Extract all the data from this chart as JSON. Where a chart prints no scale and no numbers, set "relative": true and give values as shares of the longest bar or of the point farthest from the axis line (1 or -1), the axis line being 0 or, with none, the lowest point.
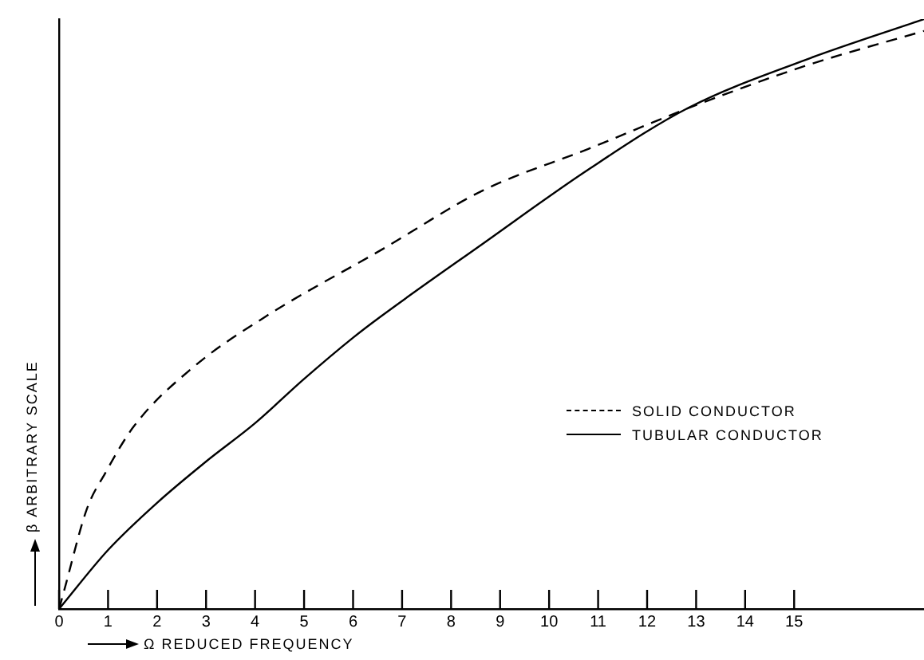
{
  "chart_data": {
    "type": "line",
    "relative": true,
    "xlabel": "Ω REDUCED FREQUENCY",
    "ylabel": "β ARBITRARY SCALE",
    "xlim": [
      0,
      17.65
    ],
    "xticks": [
      0,
      1,
      2,
      3,
      4,
      5,
      6,
      7,
      8,
      9,
      10,
      11,
      12,
      13,
      14,
      15
    ],
    "grid": false,
    "legend": "right",
    "marker": "none",
    "series": [
      {
        "name": "SOLID CONDUCTOR",
        "color": "#000000",
        "line_style": "dashed",
        "x": [
          0,
          0.1,
          0.57,
          0.94,
          1.53,
          2.74,
          4.2,
          6.6,
          8.66,
          10.8,
          12.87,
          15.2,
          17.65
        ],
        "values": [
          0,
          0.03,
          0.17,
          0.23,
          0.31,
          0.41,
          0.495,
          0.61,
          0.71,
          0.78,
          0.85,
          0.92,
          0.98
        ]
      },
      {
        "name": "TUBULAR CONDUCTOR",
        "color": "#000000",
        "line_style": "solid",
        "x": [
          0,
          1,
          2,
          3,
          4,
          5,
          6,
          6.55,
          8.66,
          10.8,
          12.85,
          15.2,
          17.65
        ],
        "values": [
          0,
          0.1,
          0.18,
          0.25,
          0.315,
          0.39,
          0.46,
          0.495,
          0.62,
          0.745,
          0.85,
          0.93,
          1
        ]
      }
    ]
  }
}
